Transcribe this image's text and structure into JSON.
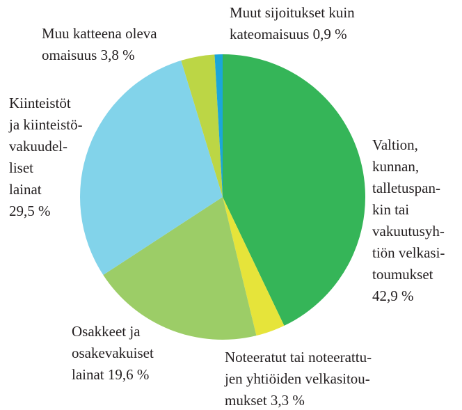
{
  "chart_data": {
    "type": "pie",
    "categories": [
      "Valtion,\nkunnan,\ntalletuspan-\nkin tai\nvakuutusyh-\ntiön velkasi-\ntoumukset\n",
      "Noteeratut tai noteerattu-\njen yhtiöiden velkasitou-\nmukset",
      "Osakkeet ja\nosakevakuiset\nlainat",
      "Kiinteistöt\nja kiinteistö-\nvakuudel-\nliset\nlainat\n",
      "Muu katteena oleva\nomaisuus",
      "Muut sijoitukset kuin\nkateomaisuus"
    ],
    "values": [
      42.9,
      3.3,
      19.6,
      29.5,
      3.8,
      0.9
    ],
    "value_labels": [
      "42,9 %",
      "3,3 %",
      "19,6 %",
      "29,5 %",
      "3,8 %",
      "0,9 %"
    ],
    "colors": [
      "#35b558",
      "#e6e43a",
      "#9ccd67",
      "#82d3ea",
      "#bcd645",
      "#1ba6d9"
    ]
  }
}
